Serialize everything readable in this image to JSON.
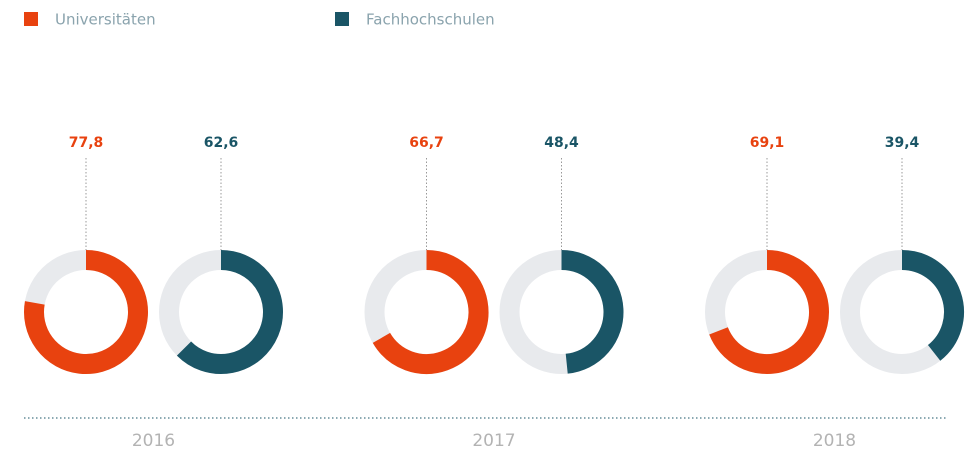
{
  "chart_data": {
    "type": "donut",
    "categories": [
      "2016",
      "2017",
      "2018"
    ],
    "series": [
      {
        "name": "Universitäten",
        "color": "#e8420f",
        "values": [
          77.8,
          66.7,
          69.1
        ],
        "value_labels": [
          "77,8",
          "66,7",
          "69,1"
        ]
      },
      {
        "name": "Fachhochschulen",
        "color": "#1a5566",
        "values": [
          62.6,
          48.4,
          39.4
        ],
        "value_labels": [
          "62,6",
          "48,4",
          "39,4"
        ]
      }
    ],
    "ylim": [
      0,
      100
    ],
    "track_color": "#e8eaed"
  }
}
